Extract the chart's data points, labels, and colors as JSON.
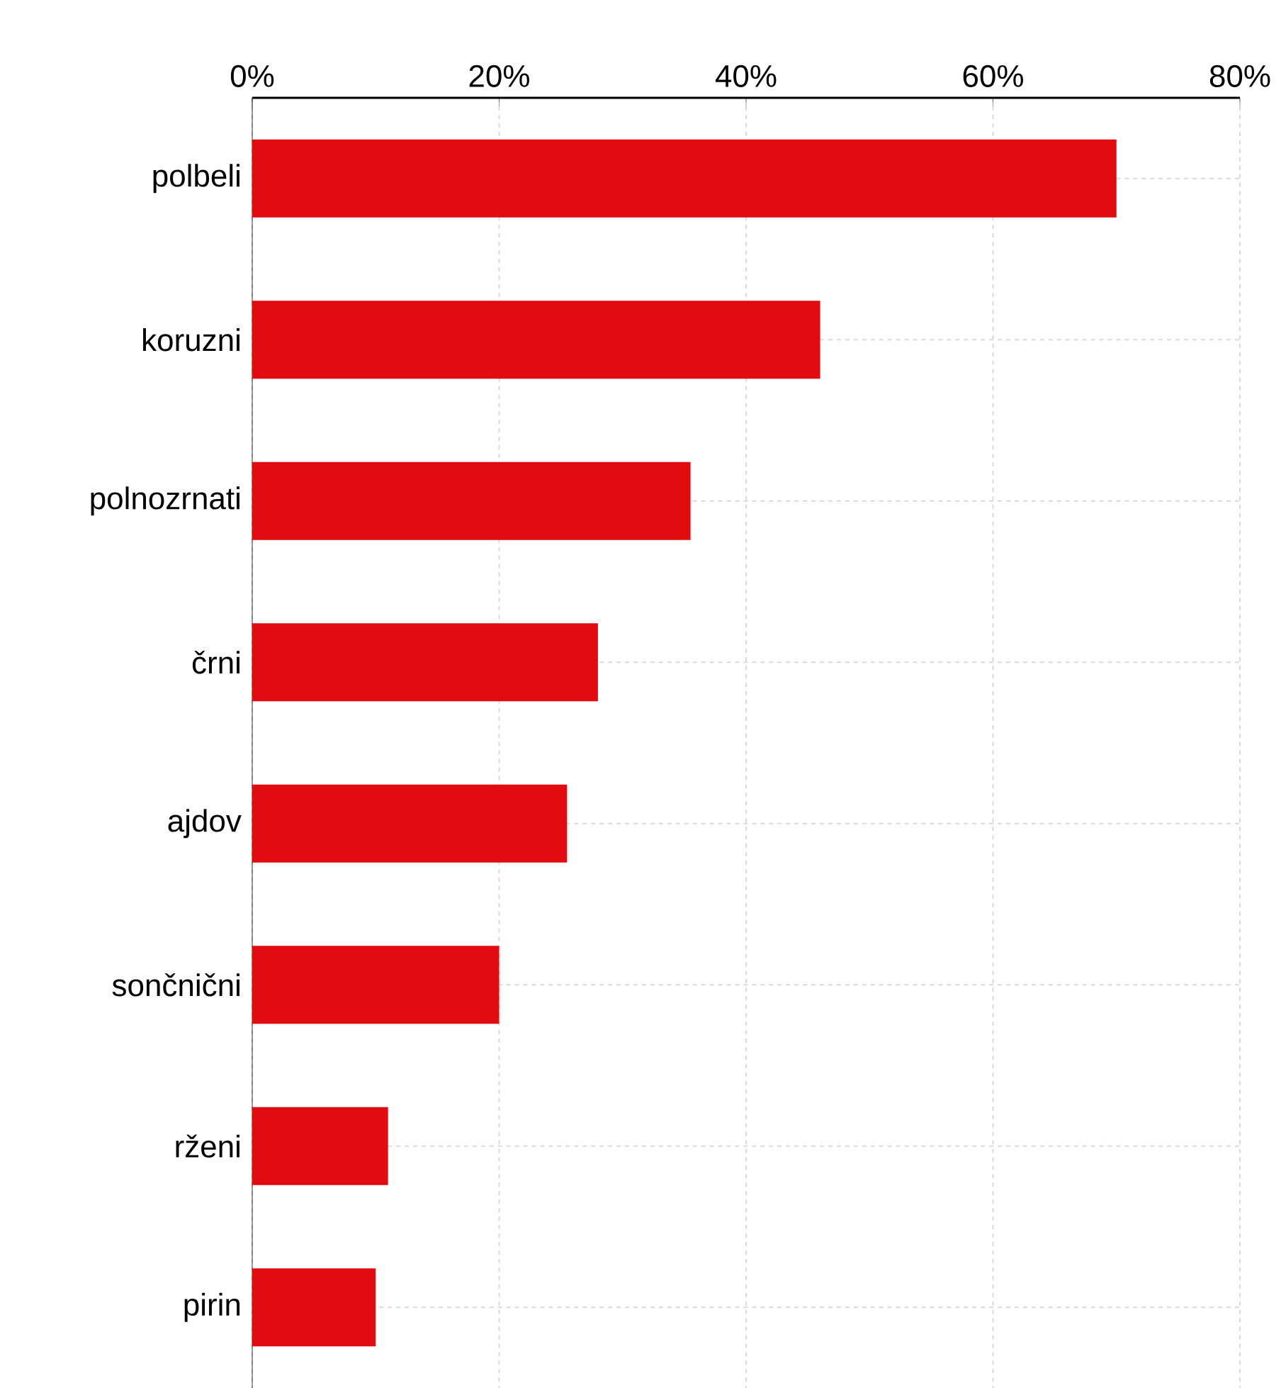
{
  "chart_data": {
    "type": "bar",
    "orientation": "horizontal",
    "categories": [
      "polbeli",
      "koruzni",
      "polnozrnati",
      "črni",
      "ajdov",
      "sončnični",
      "rženi",
      "pirin"
    ],
    "values": [
      70,
      46,
      35.5,
      28,
      25.5,
      20,
      11,
      10
    ],
    "color": "#e00c10",
    "xlim": [
      0,
      80
    ],
    "xticks": [
      {
        "value": 0,
        "label": "0%"
      },
      {
        "value": 20,
        "label": "20%"
      },
      {
        "value": 40,
        "label": "40%"
      },
      {
        "value": 60,
        "label": "60%"
      },
      {
        "value": 80,
        "label": "80%"
      }
    ],
    "grid": true
  }
}
